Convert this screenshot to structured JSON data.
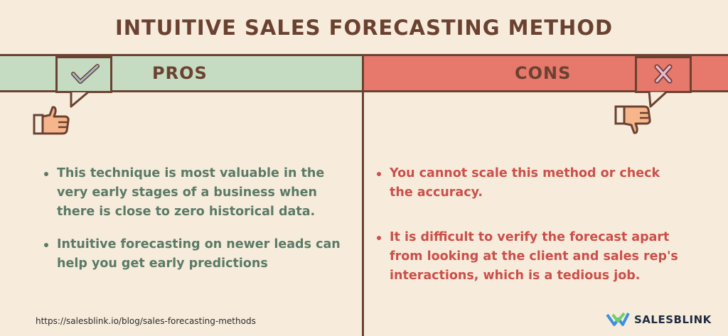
{
  "title": "INTUITIVE SALES FORECASTING METHOD",
  "pros": {
    "label": "PROS",
    "items": [
      "This technique is most valuable in the very early stages of a business when there is close to zero historical data.",
      "Intuitive forecasting on newer leads can help you get early predictions"
    ]
  },
  "cons": {
    "label": "CONS",
    "items": [
      "You cannot scale this method or check the accuracy.",
      "It is difficult to verify the forecast apart from looking at the client and sales rep's interactions, which is a tedious job."
    ]
  },
  "footer": {
    "url": "https://salesblink.io/blog/sales-forecasting-methods",
    "brand": "SALESBLINK"
  },
  "colors": {
    "background": "#f7ecdc",
    "pros_band": "#c5dbc2",
    "cons_band": "#e6786c",
    "pros_text": "#5a7a66",
    "cons_text": "#cc4f4a",
    "border": "#6b4232"
  },
  "icons": {
    "pros_badge": "checkmark-icon",
    "cons_badge": "cross-icon",
    "pros_hand": "thumbs-up-icon",
    "cons_hand": "thumbs-down-icon",
    "brand_logo": "salesblink-logo-icon"
  }
}
